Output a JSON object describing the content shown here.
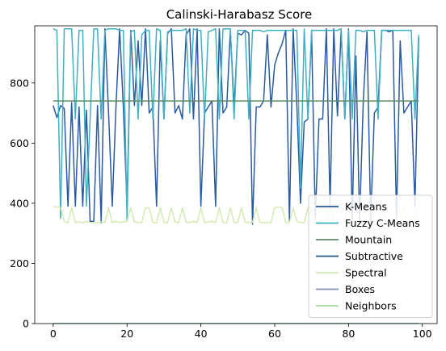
{
  "chart_data": {
    "type": "line",
    "title": "Calinski-Harabasz Score",
    "xlabel": "",
    "ylabel": "",
    "xlim": [
      -5,
      104
    ],
    "ylim": [
      0,
      990
    ],
    "xticks": [
      0,
      20,
      40,
      60,
      80,
      100
    ],
    "yticks": [
      0,
      200,
      400,
      600,
      800
    ],
    "grid": false,
    "legend": "lower-right",
    "x": [
      0,
      1,
      2,
      3,
      4,
      5,
      6,
      7,
      8,
      9,
      10,
      11,
      12,
      13,
      14,
      15,
      16,
      17,
      18,
      19,
      20,
      21,
      22,
      23,
      24,
      25,
      26,
      27,
      28,
      29,
      30,
      31,
      32,
      33,
      34,
      35,
      36,
      37,
      38,
      39,
      40,
      41,
      42,
      43,
      44,
      45,
      46,
      47,
      48,
      49,
      50,
      51,
      52,
      53,
      54,
      55,
      56,
      57,
      58,
      59,
      60,
      61,
      62,
      63,
      64,
      65,
      66,
      67,
      68,
      69,
      70,
      71,
      72,
      73,
      74,
      75,
      76,
      77,
      78,
      79,
      80,
      81,
      82,
      83,
      84,
      85,
      86,
      87,
      88,
      89,
      90,
      91,
      92,
      93,
      94,
      95,
      96,
      97,
      98,
      99
    ],
    "series": [
      {
        "name": "K-Means",
        "color": "#2a5aa3",
        "values": [
          725,
          685,
          725,
          715,
          390,
          735,
          390,
          720,
          390,
          710,
          340,
          340,
          725,
          335,
          980,
          700,
          390,
          720,
          980,
          720,
          390,
          975,
          725,
          940,
          725,
          980,
          700,
          720,
          390,
          940,
          680,
          965,
          980,
          700,
          725,
          680,
          960,
          980,
          680,
          980,
          390,
          700,
          720,
          740,
          390,
          980,
          700,
          720,
          975,
          720,
          965,
          960,
          975,
          965,
          330,
          720,
          720,
          740,
          960,
          720,
          860,
          900,
          930,
          975,
          340,
          980,
          725,
          400,
          670,
          680,
          965,
          350,
          680,
          680,
          980,
          390,
          980,
          690,
          975,
          680,
          980,
          340,
          890,
          340,
          740,
          970,
          340,
          700,
          720,
          975,
          975,
          970,
          975,
          350,
          940,
          700,
          720,
          740,
          390,
          950
        ]
      },
      {
        "name": "Fuzzy C-Means",
        "color": "#41b0c3",
        "values": [
          980,
          975,
          350,
          980,
          980,
          980,
          680,
          975,
          975,
          390,
          680,
          980,
          980,
          680,
          975,
          980,
          980,
          980,
          975,
          975,
          340,
          970,
          975,
          680,
          960,
          975,
          975,
          680,
          980,
          975,
          680,
          970,
          975,
          975,
          975,
          975,
          980,
          700,
          980,
          975,
          975,
          680,
          970,
          975,
          980,
          680,
          980,
          980,
          980,
          680,
          975,
          975,
          975,
          680,
          975,
          975,
          975,
          970,
          975,
          975,
          975,
          975,
          975,
          975,
          975,
          975,
          975,
          450,
          980,
          680,
          975,
          975,
          975,
          975,
          975,
          975,
          975,
          975,
          980,
          680,
          975,
          680,
          975,
          975,
          970,
          975,
          975,
          975,
          680,
          975,
          975,
          975,
          975,
          975,
          975,
          975,
          975,
          975,
          680,
          960
        ]
      },
      {
        "name": "Mountain",
        "color": "#5e8a62",
        "values": [
          740,
          740,
          740,
          740,
          740,
          740,
          740,
          740,
          740,
          740,
          740,
          740,
          740,
          740,
          740,
          740,
          740,
          740,
          740,
          740,
          740,
          740,
          740,
          740,
          740,
          740,
          740,
          740,
          740,
          740,
          740,
          740,
          740,
          740,
          740,
          740,
          740,
          740,
          740,
          740,
          740,
          740,
          740,
          740,
          740,
          740,
          740,
          740,
          740,
          740,
          740,
          740,
          740,
          740,
          740,
          740,
          740,
          740,
          740,
          740,
          740,
          740,
          740,
          740,
          740,
          740,
          740,
          740,
          740,
          740,
          740,
          740,
          740,
          740,
          740,
          740,
          740,
          740,
          740,
          740,
          740,
          740,
          740,
          740,
          740,
          740,
          740,
          740,
          740,
          740,
          740,
          740,
          740,
          740,
          740,
          740,
          740,
          740,
          740,
          740
        ]
      },
      {
        "name": "Subtractive",
        "color": "#1d5e8c",
        "values": [
          0,
          0,
          0,
          0,
          0,
          0,
          0,
          0,
          0,
          0,
          0,
          0,
          0,
          0,
          0,
          0,
          0,
          0,
          0,
          0,
          0,
          0,
          0,
          0,
          0,
          0,
          0,
          0,
          0,
          0,
          0,
          0,
          0,
          0,
          0,
          0,
          0,
          0,
          0,
          0,
          0,
          0,
          0,
          0,
          0,
          0,
          0,
          0,
          0,
          0,
          0,
          0,
          0,
          0,
          0,
          0,
          0,
          0,
          0,
          0,
          0,
          0,
          0,
          0,
          0,
          0,
          0,
          0,
          0,
          0,
          0,
          0,
          0,
          0,
          0,
          0,
          0,
          0,
          0,
          0,
          0,
          0,
          0,
          0,
          0,
          0,
          0,
          0,
          0,
          0,
          0,
          0,
          0,
          0,
          0,
          0,
          0,
          0,
          0,
          0
        ]
      },
      {
        "name": "Spectral",
        "color": "#d4eab0",
        "values": [
          388,
          388,
          385,
          340,
          335,
          385,
          336,
          338,
          335,
          340,
          336,
          335,
          336,
          338,
          336,
          385,
          336,
          340,
          336,
          338,
          340,
          385,
          338,
          336,
          336,
          385,
          385,
          336,
          335,
          385,
          336,
          336,
          385,
          338,
          335,
          385,
          336,
          336,
          340,
          336,
          385,
          336,
          338,
          340,
          336,
          385,
          336,
          335,
          385,
          336,
          336,
          385,
          338,
          336,
          336,
          385,
          336,
          336,
          335,
          336,
          385,
          388,
          385,
          336,
          336,
          385,
          340,
          336,
          336,
          385,
          385,
          336,
          340,
          336,
          336,
          385,
          336,
          340,
          336,
          336,
          385,
          336,
          340,
          336,
          336,
          336,
          385,
          336,
          336,
          385,
          340,
          336,
          338,
          336,
          336,
          385,
          336,
          340,
          336,
          385
        ]
      },
      {
        "name": "Boxes",
        "color": "#7f98ad",
        "values": [
          0,
          0,
          0,
          0,
          0,
          0,
          0,
          0,
          0,
          0,
          0,
          0,
          0,
          0,
          0,
          0,
          0,
          0,
          0,
          0,
          0,
          0,
          0,
          0,
          0,
          0,
          0,
          0,
          0,
          0,
          0,
          0,
          0,
          0,
          0,
          0,
          0,
          0,
          0,
          0,
          0,
          0,
          0,
          0,
          0,
          0,
          0,
          0,
          0,
          0,
          0,
          0,
          0,
          0,
          0,
          0,
          0,
          0,
          0,
          0,
          0,
          0,
          0,
          0,
          0,
          0,
          0,
          0,
          0,
          0,
          0,
          0,
          0,
          0,
          0,
          0,
          0,
          0,
          0,
          0,
          0,
          0,
          0,
          0,
          0,
          0,
          0,
          0,
          0,
          0,
          0,
          0,
          0,
          0,
          0,
          0,
          0,
          0,
          0,
          0
        ]
      },
      {
        "name": "Neighbors",
        "color": "#a6dfa5",
        "values": [
          0,
          0,
          0,
          0,
          0,
          0,
          0,
          0,
          0,
          0,
          0,
          0,
          0,
          0,
          0,
          0,
          0,
          0,
          0,
          0,
          0,
          0,
          0,
          0,
          0,
          0,
          0,
          0,
          0,
          0,
          0,
          0,
          0,
          0,
          0,
          0,
          0,
          0,
          0,
          0,
          0,
          0,
          0,
          0,
          0,
          0,
          0,
          0,
          0,
          0,
          0,
          0,
          0,
          0,
          0,
          0,
          0,
          0,
          0,
          0,
          0,
          0,
          0,
          0,
          0,
          0,
          0,
          0,
          0,
          0,
          0,
          0,
          0,
          0,
          0,
          0,
          0,
          0,
          0,
          0,
          0,
          0,
          0,
          0,
          0,
          0,
          0,
          0,
          0,
          0,
          0,
          0,
          0,
          0,
          0,
          0,
          0,
          0,
          0,
          0
        ]
      }
    ]
  }
}
